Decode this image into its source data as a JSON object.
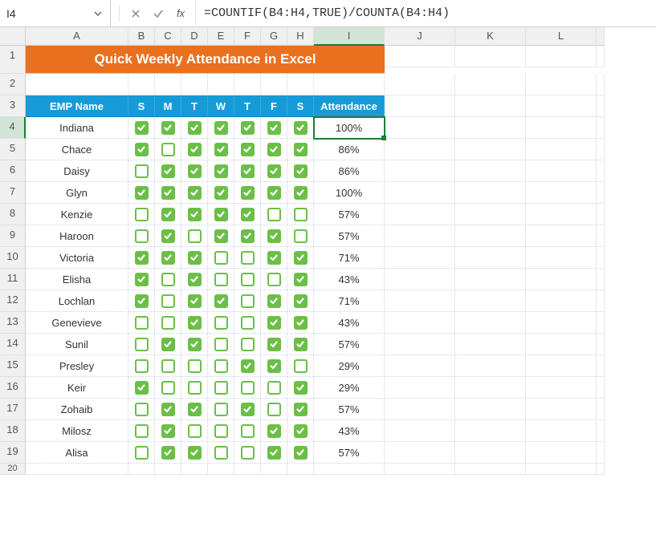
{
  "name_box": "I4",
  "formula": "=COUNTIF(B4:H4,TRUE)/COUNTA(B4:H4)",
  "icons": {
    "cancel": "×",
    "accept": "✓",
    "fx": "fx"
  },
  "columns": [
    "A",
    "B",
    "C",
    "D",
    "E",
    "F",
    "G",
    "H",
    "I",
    "J",
    "K",
    "L",
    ""
  ],
  "title": "Quick Weekly Attendance in Excel",
  "headers": {
    "name": "EMP Name",
    "days": [
      "S",
      "M",
      "T",
      "W",
      "T",
      "F",
      "S"
    ],
    "att": "Attendance"
  },
  "colors": {
    "title_bg": "#e9701e",
    "header_bg": "#169bd7",
    "check_on": "#6bbf47",
    "selection": "#1e7e34"
  },
  "selected": {
    "row": 4,
    "col": "I"
  },
  "rows": [
    {
      "n": 4,
      "name": "Indiana",
      "d": [
        1,
        1,
        1,
        1,
        1,
        1,
        1
      ],
      "att": "100%"
    },
    {
      "n": 5,
      "name": "Chace",
      "d": [
        1,
        0,
        1,
        1,
        1,
        1,
        1
      ],
      "att": "86%"
    },
    {
      "n": 6,
      "name": "Daisy",
      "d": [
        0,
        1,
        1,
        1,
        1,
        1,
        1
      ],
      "att": "86%"
    },
    {
      "n": 7,
      "name": "Glyn",
      "d": [
        1,
        1,
        1,
        1,
        1,
        1,
        1
      ],
      "att": "100%"
    },
    {
      "n": 8,
      "name": "Kenzie",
      "d": [
        0,
        1,
        1,
        1,
        1,
        0,
        0
      ],
      "att": "57%"
    },
    {
      "n": 9,
      "name": "Haroon",
      "d": [
        0,
        1,
        0,
        1,
        1,
        1,
        0
      ],
      "att": "57%"
    },
    {
      "n": 10,
      "name": "Victoria",
      "d": [
        1,
        1,
        1,
        0,
        0,
        1,
        1
      ],
      "att": "71%"
    },
    {
      "n": 11,
      "name": "Elisha",
      "d": [
        1,
        0,
        1,
        0,
        0,
        0,
        1
      ],
      "att": "43%"
    },
    {
      "n": 12,
      "name": "Lochlan",
      "d": [
        1,
        0,
        1,
        1,
        0,
        1,
        1
      ],
      "att": "71%"
    },
    {
      "n": 13,
      "name": "Genevieve",
      "d": [
        0,
        0,
        1,
        0,
        0,
        1,
        1
      ],
      "att": "43%"
    },
    {
      "n": 14,
      "name": "Sunil",
      "d": [
        0,
        1,
        1,
        0,
        0,
        1,
        1
      ],
      "att": "57%"
    },
    {
      "n": 15,
      "name": "Presley",
      "d": [
        0,
        0,
        0,
        0,
        1,
        1,
        0
      ],
      "att": "29%"
    },
    {
      "n": 16,
      "name": "Keir",
      "d": [
        1,
        0,
        0,
        0,
        0,
        0,
        1
      ],
      "att": "29%"
    },
    {
      "n": 17,
      "name": "Zohaib",
      "d": [
        0,
        1,
        1,
        0,
        1,
        0,
        1
      ],
      "att": "57%"
    },
    {
      "n": 18,
      "name": "Milosz",
      "d": [
        0,
        1,
        0,
        0,
        0,
        1,
        1
      ],
      "att": "43%"
    },
    {
      "n": 19,
      "name": "Alisa",
      "d": [
        0,
        1,
        1,
        0,
        0,
        1,
        1
      ],
      "att": "57%"
    }
  ],
  "trailing_row": 20
}
